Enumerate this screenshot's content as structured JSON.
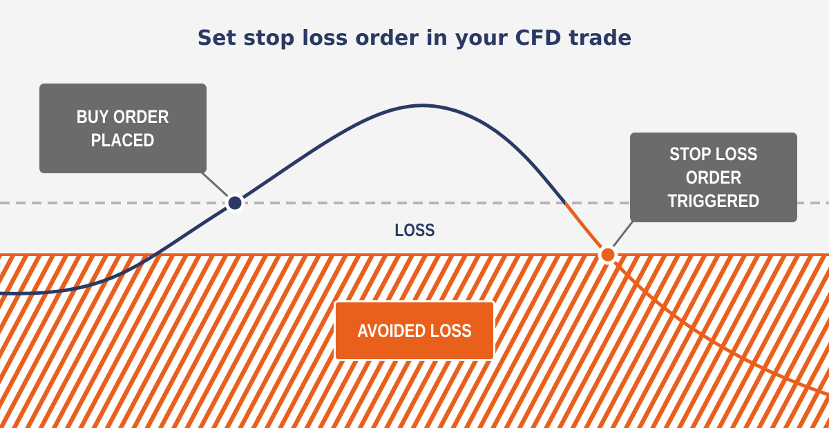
{
  "title": "Set stop loss order in your CFD trade",
  "callouts": {
    "buy_line1": "BUY ORDER",
    "buy_line2": "PLACED",
    "stop_line1": "STOP LOSS ORDER",
    "stop_line2": "TRIGGERED"
  },
  "zones": {
    "loss": "LOSS",
    "avoided_loss": "AVOIDED LOSS"
  },
  "colors": {
    "background": "#f4f4f5",
    "navy": "#2a3a64",
    "orange": "#e8601c",
    "callout_gray": "#6b6b6b",
    "dashed_line": "#b5b5b5"
  }
}
